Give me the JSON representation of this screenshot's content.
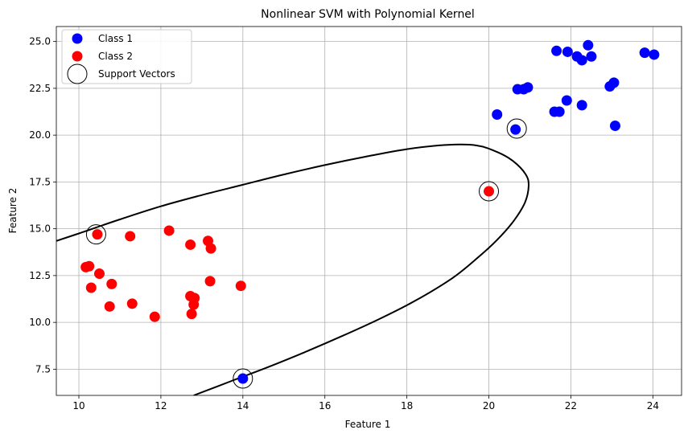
{
  "chart_data": {
    "type": "scatter",
    "title": "Nonlinear SVM with Polynomial Kernel",
    "xlabel": "Feature 1",
    "ylabel": "Feature 2",
    "xlim": [
      9.45,
      24.7
    ],
    "ylim": [
      6.1,
      25.8
    ],
    "xticks": [
      10,
      12,
      14,
      16,
      18,
      20,
      22,
      24
    ],
    "yticks": [
      7.5,
      10.0,
      12.5,
      15.0,
      17.5,
      20.0,
      22.5,
      25.0
    ],
    "grid": true,
    "legend_position": "top-left",
    "series": [
      {
        "name": "Class 1",
        "color": "#0000ff",
        "marker": "filled-circle",
        "points": [
          [
            14.0,
            7.0
          ],
          [
            20.2,
            21.1
          ],
          [
            20.65,
            20.3
          ],
          [
            20.7,
            22.45
          ],
          [
            20.85,
            22.45
          ],
          [
            20.95,
            22.55
          ],
          [
            21.6,
            21.25
          ],
          [
            21.72,
            21.25
          ],
          [
            21.9,
            21.85
          ],
          [
            21.65,
            24.5
          ],
          [
            21.92,
            24.45
          ],
          [
            22.15,
            24.2
          ],
          [
            22.27,
            24.0
          ],
          [
            22.27,
            21.6
          ],
          [
            22.42,
            24.8
          ],
          [
            22.5,
            24.2
          ],
          [
            22.95,
            22.6
          ],
          [
            23.05,
            22.8
          ],
          [
            23.08,
            20.5
          ],
          [
            23.8,
            24.4
          ],
          [
            24.03,
            24.3
          ]
        ]
      },
      {
        "name": "Class 2",
        "color": "#ff0000",
        "marker": "filled-circle",
        "points": [
          [
            10.17,
            12.95
          ],
          [
            10.25,
            13.0
          ],
          [
            10.45,
            14.7
          ],
          [
            10.3,
            11.85
          ],
          [
            10.5,
            12.6
          ],
          [
            10.75,
            10.85
          ],
          [
            10.8,
            12.05
          ],
          [
            11.25,
            14.6
          ],
          [
            11.3,
            11.0
          ],
          [
            11.85,
            10.3
          ],
          [
            12.2,
            14.9
          ],
          [
            12.72,
            14.15
          ],
          [
            12.72,
            11.4
          ],
          [
            12.75,
            10.45
          ],
          [
            12.8,
            10.95
          ],
          [
            12.82,
            11.3
          ],
          [
            13.15,
            14.35
          ],
          [
            13.22,
            13.95
          ],
          [
            13.2,
            12.2
          ],
          [
            13.95,
            11.95
          ],
          [
            20.0,
            17.0
          ]
        ]
      },
      {
        "name": "Support Vectors",
        "color": "#000000",
        "marker": "hollow-circle",
        "points": [
          [
            10.42,
            14.7
          ],
          [
            14.0,
            7.0
          ],
          [
            20.0,
            17.0
          ],
          [
            20.68,
            20.35
          ]
        ]
      }
    ],
    "decision_boundary": {
      "color": "#000000",
      "points": [
        [
          12.8,
          6.1
        ],
        [
          13.7,
          6.85
        ],
        [
          14.6,
          7.6
        ],
        [
          15.5,
          8.4
        ],
        [
          16.4,
          9.25
        ],
        [
          17.3,
          10.15
        ],
        [
          18.2,
          11.15
        ],
        [
          19.1,
          12.35
        ],
        [
          19.7,
          13.4
        ],
        [
          20.2,
          14.4
        ],
        [
          20.6,
          15.4
        ],
        [
          20.88,
          16.4
        ],
        [
          20.97,
          17.3
        ],
        [
          20.9,
          17.9
        ],
        [
          20.6,
          18.6
        ],
        [
          20.2,
          19.1
        ],
        [
          19.7,
          19.45
        ],
        [
          19.0,
          19.48
        ],
        [
          18.0,
          19.25
        ],
        [
          17.0,
          18.85
        ],
        [
          16.0,
          18.4
        ],
        [
          15.0,
          17.9
        ],
        [
          14.0,
          17.35
        ],
        [
          13.0,
          16.8
        ],
        [
          12.0,
          16.2
        ],
        [
          11.0,
          15.5
        ],
        [
          10.0,
          14.75
        ],
        [
          9.45,
          14.35
        ]
      ]
    }
  }
}
